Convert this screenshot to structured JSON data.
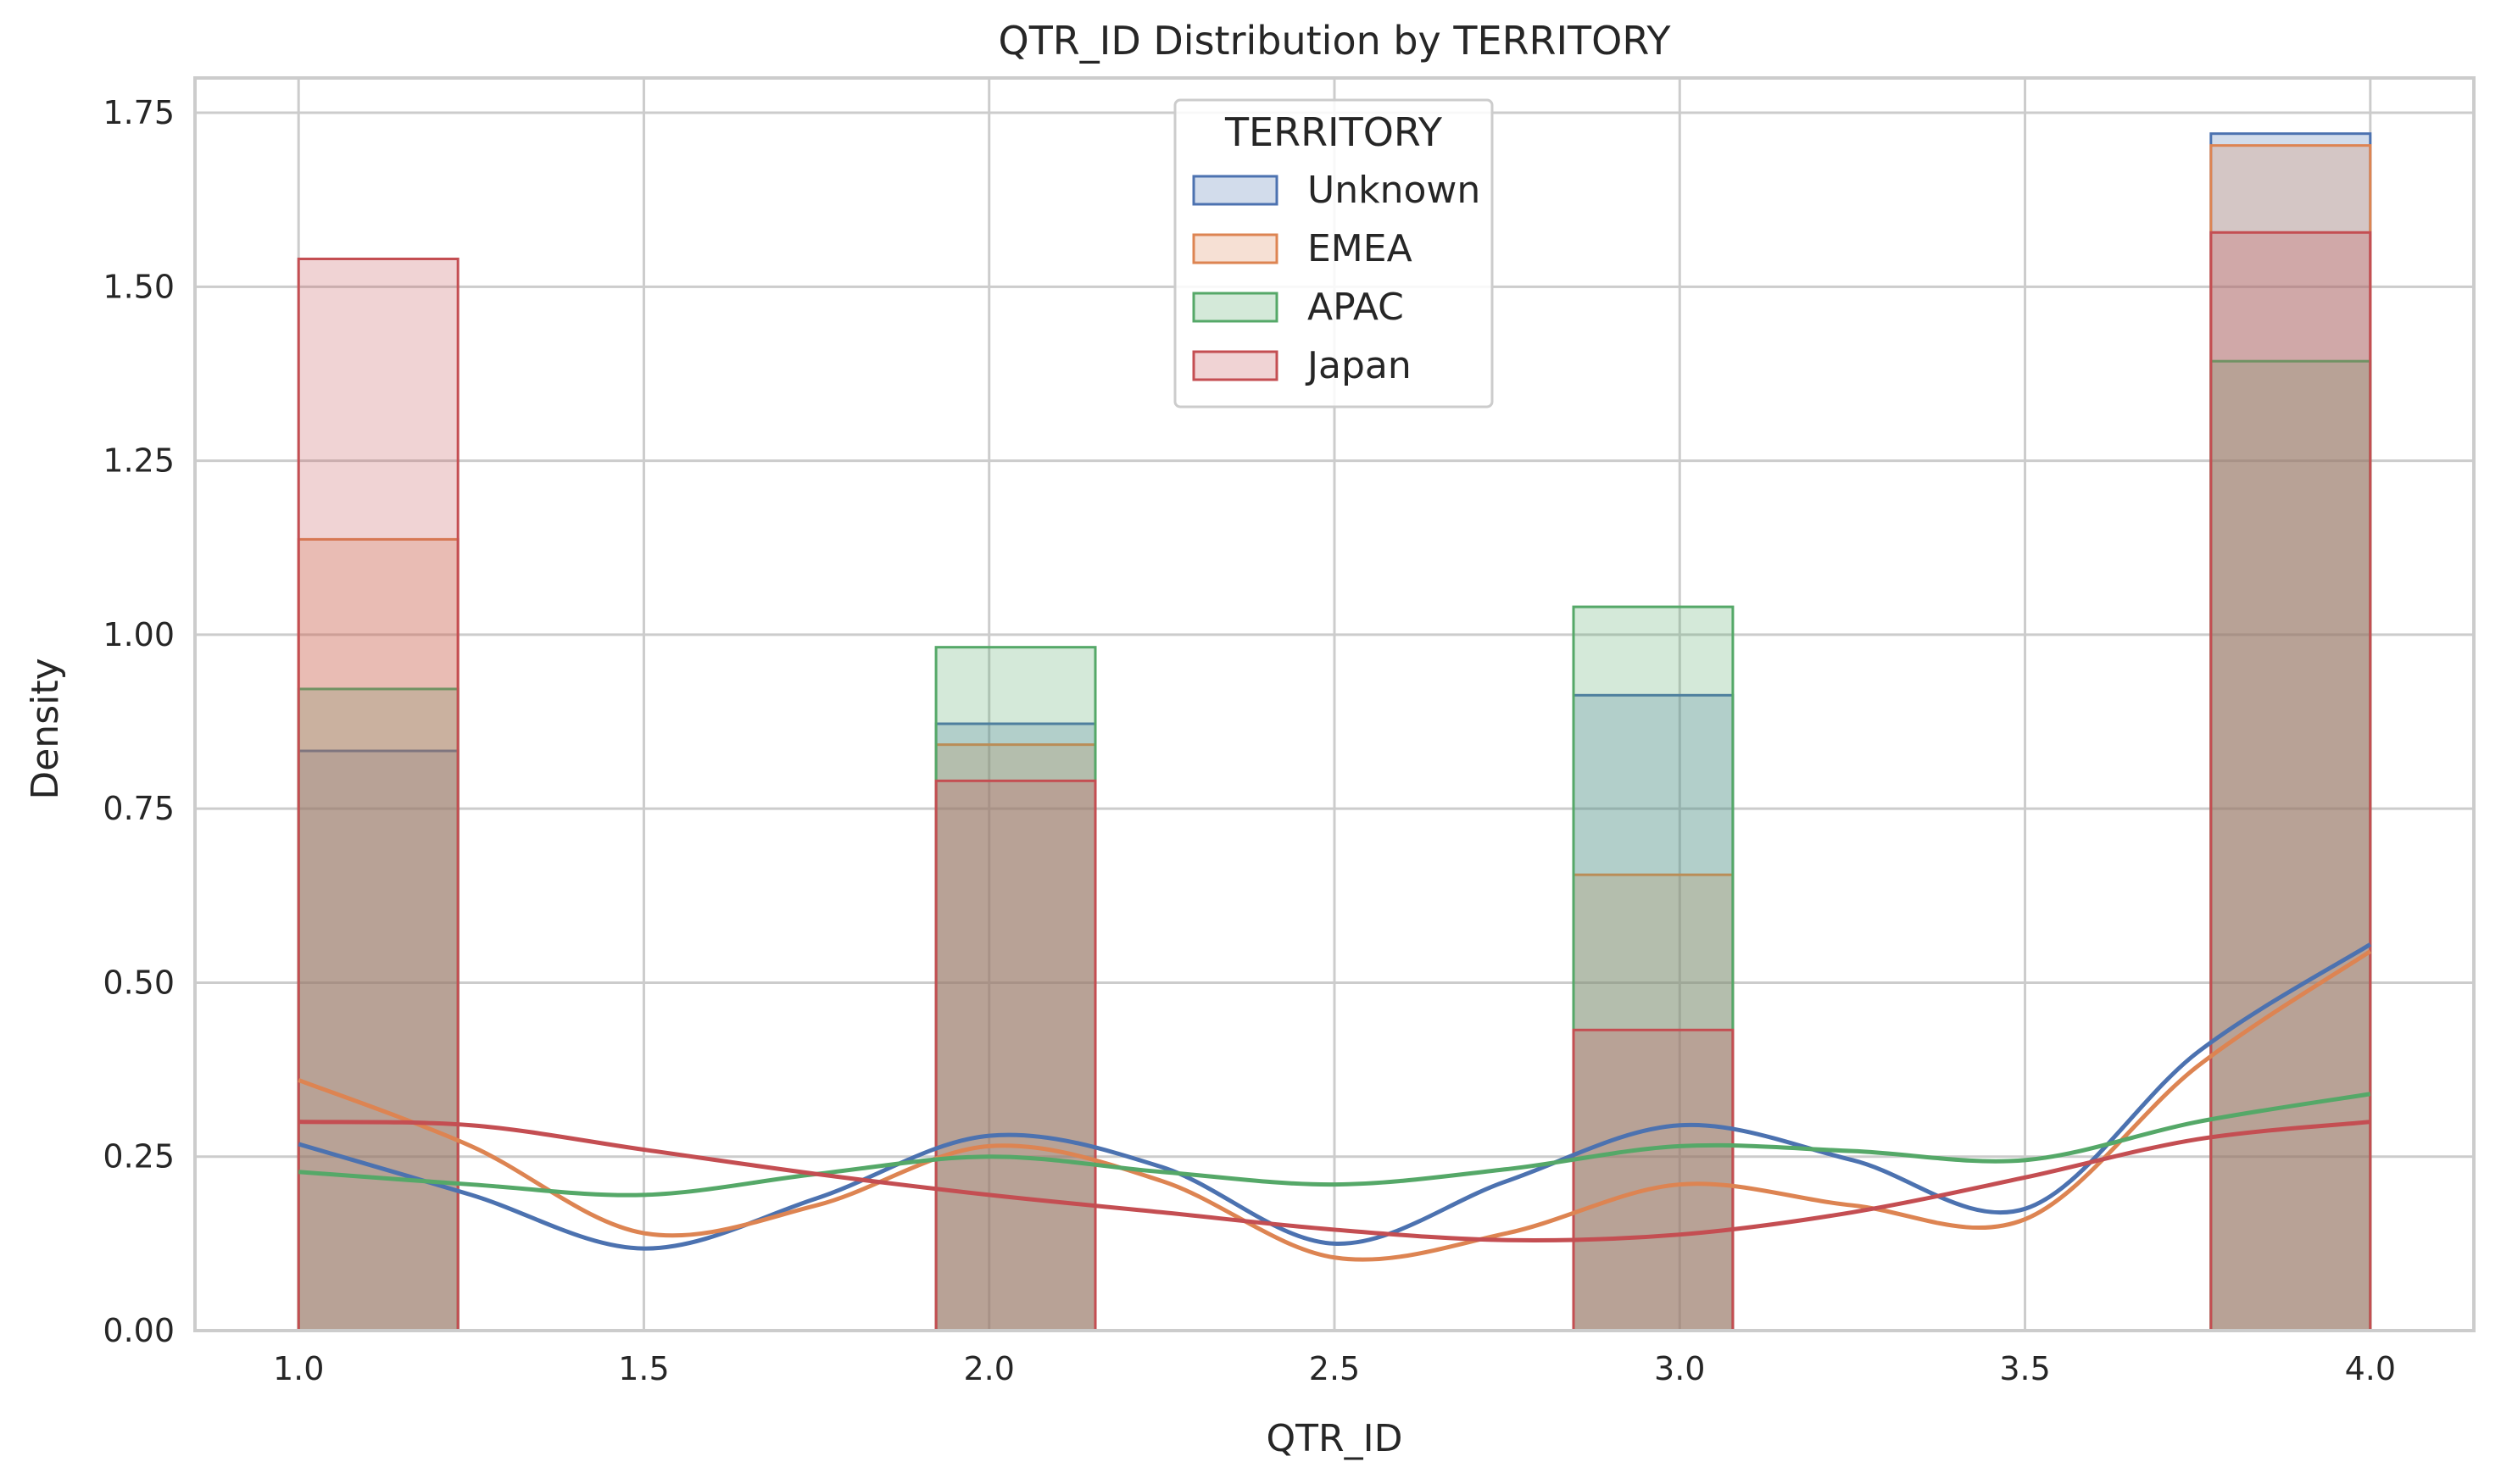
{
  "chart_data": {
    "type": "histogram",
    "title": "QTR_ID Distribution by TERRITORY",
    "xlabel": "QTR_ID",
    "ylabel": "Density",
    "xlim": [
      0.85,
      4.15
    ],
    "ylim": [
      0,
      1.8
    ],
    "xticks": [
      1.0,
      1.5,
      2.0,
      2.5,
      3.0,
      3.5,
      4.0
    ],
    "xtick_labels": [
      "1.0",
      "1.5",
      "2.0",
      "2.5",
      "3.0",
      "3.5",
      "4.0"
    ],
    "yticks": [
      0,
      0.25,
      0.5,
      0.75,
      1.0,
      1.25,
      1.5,
      1.75
    ],
    "ytick_labels": [
      "0.00",
      "0.25",
      "0.50",
      "0.75",
      "1.00",
      "1.25",
      "1.50",
      "1.75"
    ],
    "grid": true,
    "legend": {
      "title": "TERRITORY",
      "placement": "top-center"
    },
    "bins": [
      [
        1.0,
        1.2308
      ],
      [
        1.9231,
        2.1538
      ],
      [
        2.8462,
        3.0769
      ],
      [
        3.7692,
        4.0
      ]
    ],
    "series": [
      {
        "name": "Unknown",
        "color": "#4c72b0",
        "densities": [
          0.833,
          0.872,
          0.913,
          1.72
        ],
        "kde_x": [
          1.0,
          1.25,
          1.5,
          1.75,
          2.0,
          2.25,
          2.5,
          2.75,
          3.0,
          3.25,
          3.5,
          3.75,
          4.0
        ],
        "kde_y": [
          0.268,
          0.195,
          0.118,
          0.19,
          0.28,
          0.235,
          0.125,
          0.215,
          0.295,
          0.245,
          0.175,
          0.4,
          0.555
        ]
      },
      {
        "name": "EMEA",
        "color": "#dd8452",
        "densities": [
          1.137,
          0.842,
          0.655,
          1.703
        ],
        "kde_x": [
          1.0,
          1.25,
          1.5,
          1.75,
          2.0,
          2.25,
          2.5,
          2.75,
          3.0,
          3.25,
          3.5,
          3.75,
          4.0
        ],
        "kde_y": [
          0.36,
          0.265,
          0.14,
          0.18,
          0.265,
          0.215,
          0.105,
          0.14,
          0.21,
          0.18,
          0.16,
          0.38,
          0.545
        ]
      },
      {
        "name": "APAC",
        "color": "#55a868",
        "densities": [
          0.922,
          0.982,
          1.04,
          1.393
        ],
        "kde_x": [
          1.0,
          1.25,
          1.5,
          1.75,
          2.0,
          2.25,
          2.5,
          2.75,
          3.0,
          3.25,
          3.5,
          3.75,
          4.0
        ],
        "kde_y": [
          0.228,
          0.21,
          0.195,
          0.225,
          0.25,
          0.228,
          0.21,
          0.232,
          0.265,
          0.258,
          0.245,
          0.3,
          0.34
        ]
      },
      {
        "name": "Japan",
        "color": "#c44e52",
        "densities": [
          1.54,
          0.79,
          0.432,
          1.578
        ],
        "kde_x": [
          1.0,
          1.25,
          1.5,
          1.75,
          2.0,
          2.25,
          2.5,
          2.75,
          3.0,
          3.25,
          3.5,
          3.75,
          4.0
        ],
        "kde_y": [
          0.3,
          0.295,
          0.26,
          0.225,
          0.195,
          0.17,
          0.145,
          0.13,
          0.138,
          0.17,
          0.22,
          0.275,
          0.3
        ]
      }
    ]
  }
}
